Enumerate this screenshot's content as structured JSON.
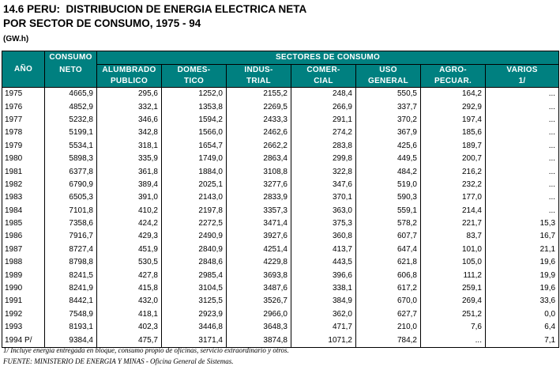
{
  "title_line1": "14.6 PERU:  DISTRIBUCION DE ENERGIA ELECTRICA NETA",
  "title_line2": "POR SECTOR DE CONSUMO, 1975 - 94",
  "unit": "(GW.h)",
  "headers": {
    "anio": "AÑO",
    "consumo_l1": "CONSUMO",
    "consumo_l2": "NETO",
    "sectores": "SECTORES DE CONSUMO",
    "cols": [
      [
        "ALUMBRADO",
        "PUBLICO"
      ],
      [
        "DOMES-",
        "TICO"
      ],
      [
        "INDUS-",
        "TRIAL"
      ],
      [
        "COMER-",
        "CIAL"
      ],
      [
        "USO",
        "GENERAL"
      ],
      [
        "AGRO-",
        "PECUAR."
      ],
      [
        "VARIOS",
        "1/"
      ]
    ]
  },
  "rows": [
    [
      "1975",
      "4665,9",
      "295,6",
      "1252,0",
      "2155,2",
      "248,4",
      "550,5",
      "164,2",
      "..."
    ],
    [
      "1976",
      "4852,9",
      "332,1",
      "1353,8",
      "2269,5",
      "266,9",
      "337,7",
      "292,9",
      "..."
    ],
    [
      "1977",
      "5232,8",
      "346,6",
      "1594,2",
      "2433,3",
      "291,1",
      "370,2",
      "197,4",
      "..."
    ],
    [
      "1978",
      "5199,1",
      "342,8",
      "1566,0",
      "2462,6",
      "274,2",
      "367,9",
      "185,6",
      "..."
    ],
    [
      "1979",
      "5534,1",
      "318,1",
      "1654,7",
      "2662,2",
      "283,8",
      "425,6",
      "189,7",
      "..."
    ],
    [
      "1980",
      "5898,3",
      "335,9",
      "1749,0",
      "2863,4",
      "299,8",
      "449,5",
      "200,7",
      "..."
    ],
    [
      "1981",
      "6377,8",
      "361,8",
      "1884,0",
      "3108,8",
      "322,8",
      "484,2",
      "216,2",
      "..."
    ],
    [
      "1982",
      "6790,9",
      "389,4",
      "2025,1",
      "3277,6",
      "347,6",
      "519,0",
      "232,2",
      "..."
    ],
    [
      "1983",
      "6505,3",
      "391,0",
      "2143,0",
      "2833,9",
      "370,1",
      "590,3",
      "177,0",
      "..."
    ],
    [
      "1984",
      "7101,8",
      "410,2",
      "2197,8",
      "3357,3",
      "363,0",
      "559,1",
      "214,4",
      "..."
    ],
    [
      "1985",
      "7358,6",
      "424,2",
      "2272,5",
      "3471,4",
      "375,3",
      "578,2",
      "221,7",
      "15,3"
    ],
    [
      "1986",
      "7916,7",
      "429,3",
      "2490,9",
      "3927,6",
      "360,8",
      "607,7",
      "83,7",
      "16,7"
    ],
    [
      "1987",
      "8727,4",
      "451,9",
      "2840,9",
      "4251,4",
      "413,7",
      "647,4",
      "101,0",
      "21,1"
    ],
    [
      "1988",
      "8798,8",
      "530,5",
      "2848,6",
      "4229,8",
      "443,5",
      "621,8",
      "105,0",
      "19,6"
    ],
    [
      "1989",
      "8241,5",
      "427,8",
      "2985,4",
      "3693,8",
      "396,6",
      "606,8",
      "111,2",
      "19,9"
    ],
    [
      "1990",
      "8241,9",
      "415,8",
      "3104,5",
      "3487,6",
      "338,1",
      "617,2",
      "259,1",
      "19,6"
    ],
    [
      "1991",
      "8442,1",
      "432,0",
      "3125,5",
      "3526,7",
      "384,9",
      "670,0",
      "269,4",
      "33,6"
    ],
    [
      "1992",
      "7548,9",
      "418,1",
      "2923,9",
      "2966,0",
      "362,0",
      "627,7",
      "251,2",
      "0,0"
    ],
    [
      "1993",
      "8193,1",
      "402,3",
      "3446,8",
      "3648,3",
      "471,7",
      "210,0",
      "7,6",
      "6,4"
    ],
    [
      "1994 P/",
      "9384,4",
      "475,7",
      "3171,4",
      "3874,8",
      "1071,2",
      "784,2",
      "...",
      "7,1"
    ]
  ],
  "footnote": "1/ Incluye energia entregada en bloque, consumo propio de oficinas, servicio extraordinario y otros.",
  "source": "FUENTE: MINISTERIO DE ENERGIA Y MINAS - Oficina General de Sistemas.",
  "colors": {
    "header_bg": "#008080",
    "header_text": "#ffffff"
  }
}
